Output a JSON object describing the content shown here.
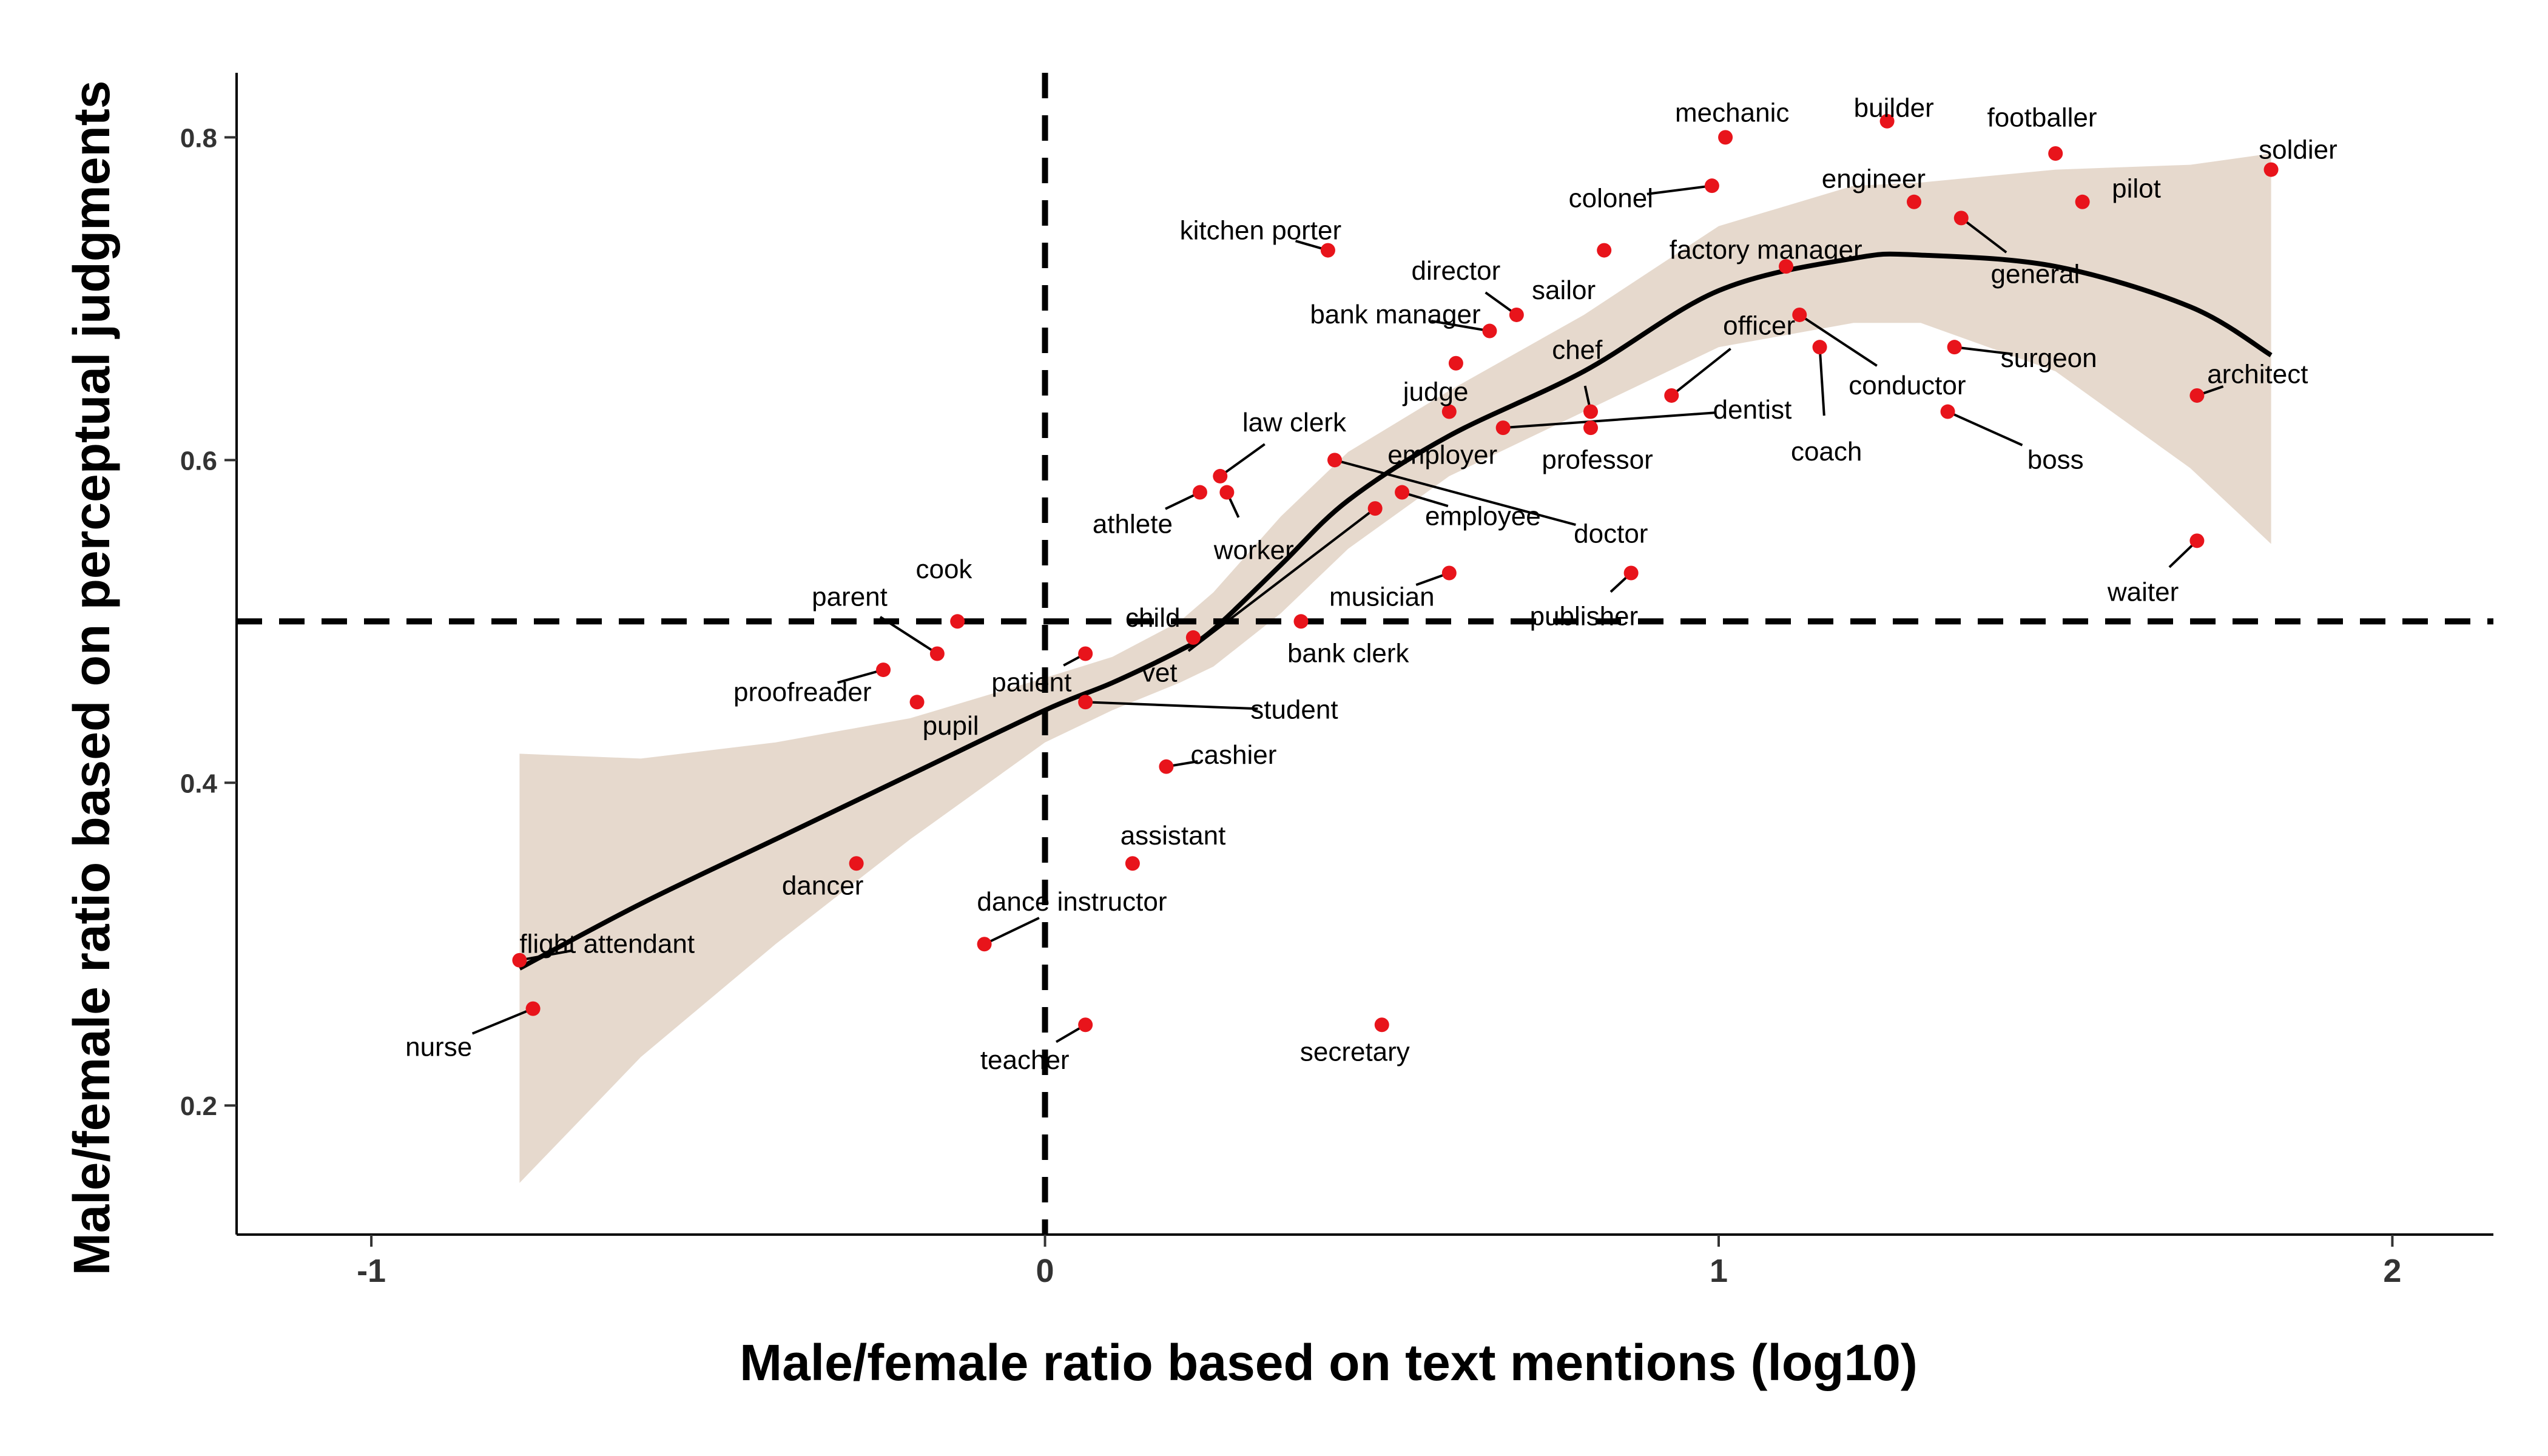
{
  "chart_data": {
    "type": "scatter",
    "title": "",
    "xlabel": "Male/female ratio based on text mentions (log10)",
    "ylabel": "Male/female ratio based on perceptual judgments",
    "xlim": [
      -1.2,
      2.15
    ],
    "ylim": [
      0.12,
      0.84
    ],
    "x_ticks": [
      {
        "value": -1,
        "label": "-1"
      },
      {
        "value": 0,
        "label": "0"
      },
      {
        "value": 1,
        "label": "1"
      },
      {
        "value": 2,
        "label": "2"
      }
    ],
    "y_ticks": [
      {
        "value": 0.2,
        "label": "0.2"
      },
      {
        "value": 0.4,
        "label": "0.4"
      },
      {
        "value": 0.6,
        "label": "0.6"
      },
      {
        "value": 0.8,
        "label": "0.8"
      }
    ],
    "reference_lines": {
      "x": 0,
      "y": 0.5
    },
    "grid": false,
    "legend": "none",
    "colors": {
      "point": "#e8141b",
      "band": "#e6d9cd",
      "smooth": "#000000",
      "reference": "#000000",
      "axis": "#000000"
    },
    "points": [
      {
        "label": "mechanic",
        "x": 1.01,
        "y": 0.8,
        "lx": 1.02,
        "ly": 0.815
      },
      {
        "label": "builder",
        "x": 1.25,
        "y": 0.81,
        "lx": 1.26,
        "ly": 0.818
      },
      {
        "label": "footballer",
        "x": 1.5,
        "y": 0.79,
        "lx": 1.48,
        "ly": 0.812
      },
      {
        "label": "soldier",
        "x": 1.82,
        "y": 0.78,
        "lx": 1.86,
        "ly": 0.792
      },
      {
        "label": "engineer",
        "x": 1.29,
        "y": 0.76,
        "lx": 1.23,
        "ly": 0.774
      },
      {
        "label": "pilot",
        "x": 1.54,
        "y": 0.76,
        "lx": 1.62,
        "ly": 0.768
      },
      {
        "label": "general",
        "x": 1.36,
        "y": 0.75,
        "lx": 1.47,
        "ly": 0.715
      },
      {
        "label": "colonel",
        "x": 0.99,
        "y": 0.77,
        "lx": 0.84,
        "ly": 0.762
      },
      {
        "label": "kitchen porter",
        "x": 0.42,
        "y": 0.73,
        "lx": 0.32,
        "ly": 0.742
      },
      {
        "label": "sailor",
        "x": 0.83,
        "y": 0.73,
        "lx": 0.77,
        "ly": 0.705
      },
      {
        "label": "factory manager",
        "x": 1.1,
        "y": 0.72,
        "lx": 1.07,
        "ly": 0.73
      },
      {
        "label": "director",
        "x": 0.7,
        "y": 0.69,
        "lx": 0.61,
        "ly": 0.717
      },
      {
        "label": "bank manager",
        "x": 0.66,
        "y": 0.68,
        "lx": 0.52,
        "ly": 0.69
      },
      {
        "label": "officer",
        "x": 0.93,
        "y": 0.64,
        "lx": 1.06,
        "ly": 0.683
      },
      {
        "label": "conductor",
        "x": 1.12,
        "y": 0.69,
        "lx": 1.28,
        "ly": 0.646
      },
      {
        "label": "surgeon",
        "x": 1.35,
        "y": 0.67,
        "lx": 1.49,
        "ly": 0.663
      },
      {
        "label": "chef",
        "x": 0.81,
        "y": 0.63,
        "lx": 0.79,
        "ly": 0.668
      },
      {
        "label": "judge",
        "x": 0.61,
        "y": 0.66,
        "lx": 0.58,
        "ly": 0.642
      },
      {
        "label": "dentist",
        "x": 0.68,
        "y": 0.62,
        "lx": 1.05,
        "ly": 0.631
      },
      {
        "label": "architect",
        "x": 1.71,
        "y": 0.64,
        "lx": 1.8,
        "ly": 0.653
      },
      {
        "label": "coach",
        "x": 1.15,
        "y": 0.67,
        "lx": 1.16,
        "ly": 0.605
      },
      {
        "label": "boss",
        "x": 1.34,
        "y": 0.63,
        "lx": 1.5,
        "ly": 0.6
      },
      {
        "label": "professor",
        "x": 0.81,
        "y": 0.62,
        "lx": 0.82,
        "ly": 0.6
      },
      {
        "label": "employer",
        "x": 0.6,
        "y": 0.63,
        "lx": 0.59,
        "ly": 0.603
      },
      {
        "label": "law clerk",
        "x": 0.26,
        "y": 0.59,
        "lx": 0.37,
        "ly": 0.623
      },
      {
        "label": "athlete",
        "x": 0.23,
        "y": 0.58,
        "lx": 0.13,
        "ly": 0.56
      },
      {
        "label": "worker",
        "x": 0.27,
        "y": 0.58,
        "lx": 0.31,
        "ly": 0.544
      },
      {
        "label": "employee",
        "x": 0.53,
        "y": 0.58,
        "lx": 0.65,
        "ly": 0.565
      },
      {
        "label": "doctor",
        "x": 0.43,
        "y": 0.6,
        "lx": 0.84,
        "ly": 0.554
      },
      {
        "label": "musician",
        "x": 0.6,
        "y": 0.53,
        "lx": 0.5,
        "ly": 0.515
      },
      {
        "label": "publisher",
        "x": 0.87,
        "y": 0.53,
        "lx": 0.8,
        "ly": 0.503
      },
      {
        "label": "waiter",
        "x": 1.71,
        "y": 0.55,
        "lx": 1.63,
        "ly": 0.518
      },
      {
        "label": "cook",
        "x": -0.13,
        "y": 0.5,
        "lx": -0.15,
        "ly": 0.532
      },
      {
        "label": "parent",
        "x": -0.16,
        "y": 0.48,
        "lx": -0.29,
        "ly": 0.515
      },
      {
        "label": "child",
        "x": 0.22,
        "y": 0.49,
        "lx": 0.16,
        "ly": 0.502
      },
      {
        "label": "bank clerk",
        "x": 0.38,
        "y": 0.5,
        "lx": 0.45,
        "ly": 0.48
      },
      {
        "label": "patient",
        "x": 0.06,
        "y": 0.48,
        "lx": -0.02,
        "ly": 0.462
      },
      {
        "label": "vet",
        "x": 0.49,
        "y": 0.57,
        "lx": 0.17,
        "ly": 0.468
      },
      {
        "label": "proofreader",
        "x": -0.24,
        "y": 0.47,
        "lx": -0.36,
        "ly": 0.456
      },
      {
        "label": "student",
        "x": 0.06,
        "y": 0.45,
        "lx": 0.37,
        "ly": 0.445
      },
      {
        "label": "pupil",
        "x": -0.19,
        "y": 0.45,
        "lx": -0.14,
        "ly": 0.435
      },
      {
        "label": "cashier",
        "x": 0.18,
        "y": 0.41,
        "lx": 0.28,
        "ly": 0.417
      },
      {
        "label": "assistant",
        "x": 0.13,
        "y": 0.35,
        "lx": 0.19,
        "ly": 0.367
      },
      {
        "label": "dancer",
        "x": -0.28,
        "y": 0.35,
        "lx": -0.33,
        "ly": 0.336
      },
      {
        "label": "dance instructor",
        "x": -0.09,
        "y": 0.3,
        "lx": 0.04,
        "ly": 0.326
      },
      {
        "label": "flight attendant",
        "x": -0.78,
        "y": 0.29,
        "lx": -0.65,
        "ly": 0.3
      },
      {
        "label": "nurse",
        "x": -0.76,
        "y": 0.26,
        "lx": -0.9,
        "ly": 0.236
      },
      {
        "label": "teacher",
        "x": 0.06,
        "y": 0.25,
        "lx": -0.03,
        "ly": 0.228
      },
      {
        "label": "secretary",
        "x": 0.5,
        "y": 0.25,
        "lx": 0.46,
        "ly": 0.233
      }
    ],
    "smooth_fit": {
      "x": [
        -0.78,
        -0.6,
        -0.4,
        -0.2,
        0.0,
        0.1,
        0.2,
        0.25,
        0.35,
        0.45,
        0.6,
        0.8,
        1.0,
        1.2,
        1.3,
        1.5,
        1.7,
        1.82
      ],
      "y": [
        0.285,
        0.325,
        0.365,
        0.405,
        0.445,
        0.462,
        0.482,
        0.495,
        0.535,
        0.575,
        0.615,
        0.655,
        0.705,
        0.725,
        0.727,
        0.72,
        0.695,
        0.665
      ],
      "lower": [
        0.152,
        0.23,
        0.3,
        0.365,
        0.425,
        0.445,
        0.462,
        0.472,
        0.505,
        0.545,
        0.59,
        0.63,
        0.67,
        0.685,
        0.685,
        0.655,
        0.595,
        0.548
      ],
      "upper": [
        0.418,
        0.415,
        0.425,
        0.44,
        0.465,
        0.478,
        0.5,
        0.518,
        0.565,
        0.605,
        0.643,
        0.69,
        0.745,
        0.77,
        0.772,
        0.78,
        0.783,
        0.79
      ]
    }
  }
}
